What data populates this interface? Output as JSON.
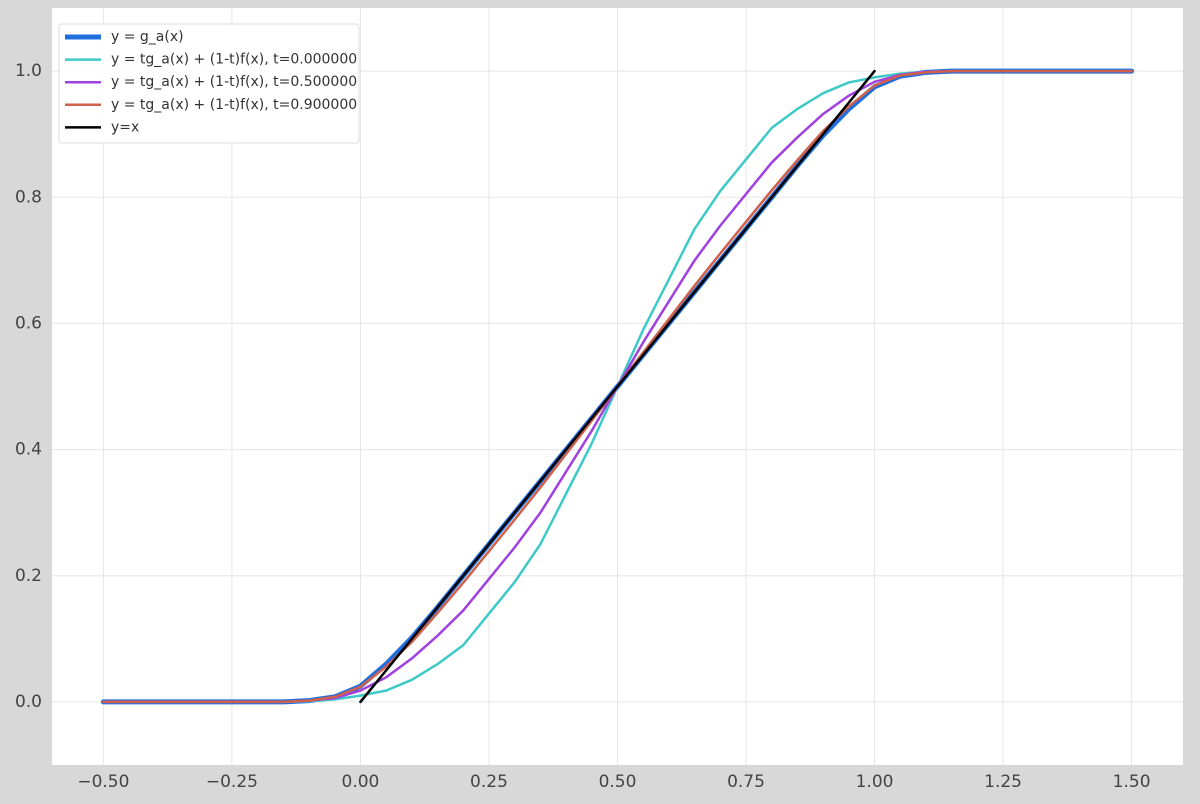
{
  "chart_data": {
    "type": "line",
    "x": [
      -0.5,
      -0.25,
      -0.15,
      -0.1,
      -0.05,
      0,
      0.05,
      0.1,
      0.15,
      0.2,
      0.25,
      0.3,
      0.35,
      0.4,
      0.45,
      0.5,
      0.55,
      0.6,
      0.65,
      0.7,
      0.75,
      0.8,
      0.85,
      0.9,
      0.95,
      1.0,
      1.05,
      1.1,
      1.15,
      1.25,
      1.5
    ],
    "series": [
      {
        "name": "y = g_a(x)",
        "color": "#1f6fe0",
        "width": 5,
        "values": [
          0,
          0,
          0,
          0.002,
          0.008,
          0.025,
          0.06,
          0.102,
          0.15,
          0.2,
          0.25,
          0.3,
          0.35,
          0.4,
          0.45,
          0.5,
          0.55,
          0.6,
          0.65,
          0.7,
          0.75,
          0.8,
          0.85,
          0.898,
          0.94,
          0.975,
          0.992,
          0.998,
          1,
          1,
          1
        ]
      },
      {
        "name": "y = tg_a(x) + (1-t)f(x), t=0.000000",
        "color": "#3ec9c9",
        "width": 2.5,
        "values": [
          0,
          0,
          0,
          0.001,
          0.004,
          0.01,
          0.018,
          0.035,
          0.06,
          0.09,
          0.14,
          0.19,
          0.25,
          0.33,
          0.41,
          0.5,
          0.59,
          0.67,
          0.75,
          0.81,
          0.86,
          0.91,
          0.94,
          0.965,
          0.982,
          0.99,
          0.996,
          0.999,
          1,
          1,
          1
        ]
      },
      {
        "name": "y = tg_a(x) + (1-t)f(x), t=0.500000",
        "color": "#a040e0",
        "width": 2.5,
        "values": [
          0,
          0,
          0,
          0.002,
          0.006,
          0.018,
          0.039,
          0.069,
          0.105,
          0.145,
          0.195,
          0.245,
          0.3,
          0.365,
          0.43,
          0.5,
          0.57,
          0.635,
          0.7,
          0.755,
          0.805,
          0.855,
          0.895,
          0.932,
          0.961,
          0.983,
          0.994,
          0.999,
          1,
          1,
          1
        ]
      },
      {
        "name": "y = tg_a(x) + (1-t)f(x), t=0.900000",
        "color": "#d0604a",
        "width": 2.5,
        "values": [
          0,
          0,
          0,
          0.002,
          0.008,
          0.024,
          0.056,
          0.095,
          0.141,
          0.189,
          0.239,
          0.289,
          0.34,
          0.393,
          0.446,
          0.5,
          0.554,
          0.607,
          0.66,
          0.711,
          0.761,
          0.811,
          0.859,
          0.905,
          0.944,
          0.977,
          0.993,
          0.998,
          1,
          1,
          1
        ]
      },
      {
        "name": "y=x",
        "color": "#000000",
        "width": 2.5,
        "x": [
          0,
          1
        ],
        "values": [
          0,
          1
        ]
      }
    ],
    "xlim": [
      -0.6,
      1.6
    ],
    "ylim": [
      -0.1,
      1.1
    ],
    "xticks": [
      {
        "value": -0.5,
        "label": "−0.50"
      },
      {
        "value": -0.25,
        "label": "−0.25"
      },
      {
        "value": 0,
        "label": "0.00"
      },
      {
        "value": 0.25,
        "label": "0.25"
      },
      {
        "value": 0.5,
        "label": "0.50"
      },
      {
        "value": 0.75,
        "label": "0.75"
      },
      {
        "value": 1.0,
        "label": "1.00"
      },
      {
        "value": 1.25,
        "label": "1.25"
      },
      {
        "value": 1.5,
        "label": "1.50"
      }
    ],
    "yticks": [
      {
        "value": 0,
        "label": "0.0"
      },
      {
        "value": 0.2,
        "label": "0.2"
      },
      {
        "value": 0.4,
        "label": "0.4"
      },
      {
        "value": 0.6,
        "label": "0.6"
      },
      {
        "value": 0.8,
        "label": "0.8"
      },
      {
        "value": 1.0,
        "label": "1.0"
      }
    ],
    "grid": true,
    "legend": "upper left"
  }
}
